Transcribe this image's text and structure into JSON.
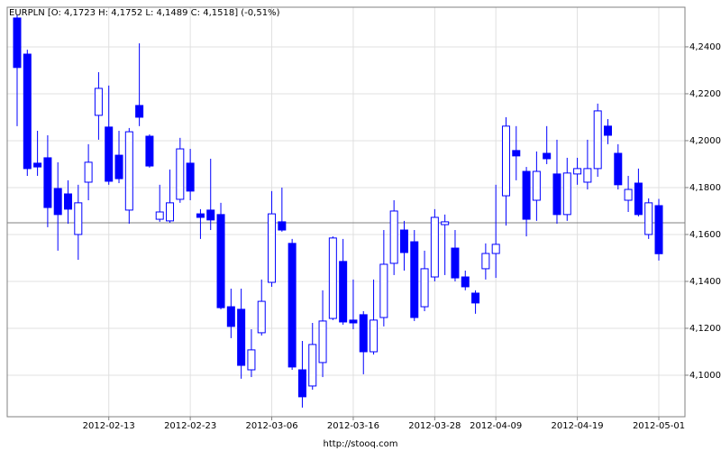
{
  "chart_data": {
    "type": "candlestick",
    "title": "EURPLN [O: 4,1723  H: 4,1752  L: 4,1489  C: 4,1518] (-0,51%)",
    "source": "http://stooq.com",
    "categories": [
      null,
      null,
      null,
      null,
      null,
      null,
      null,
      null,
      null,
      "2012-02-13",
      null,
      null,
      null,
      null,
      null,
      null,
      null,
      "2012-02-23",
      null,
      null,
      null,
      null,
      null,
      null,
      null,
      "2012-03-06",
      null,
      null,
      null,
      null,
      null,
      null,
      null,
      "2012-03-16",
      null,
      null,
      null,
      null,
      null,
      null,
      null,
      "2012-03-28",
      null,
      null,
      null,
      null,
      null,
      "2012-04-09",
      null,
      null,
      null,
      null,
      null,
      null,
      null,
      "2012-04-19",
      null,
      null,
      null,
      null,
      null,
      null,
      null,
      "2012-05-01"
    ],
    "open": [
      4.2523,
      4.2369,
      4.1904,
      4.1927,
      4.1796,
      4.1773,
      4.16,
      4.1823,
      4.2108,
      4.2058,
      4.1938,
      4.1704,
      4.215,
      4.2019,
      4.1665,
      4.1658,
      4.175,
      4.1904,
      4.1688,
      4.1704,
      4.1685,
      4.1292,
      4.1281,
      4.1023,
      4.1181,
      4.1396,
      4.1654,
      4.1562,
      4.1023,
      4.0954,
      4.1054,
      4.1242,
      4.1485,
      4.1235,
      4.1258,
      4.11,
      4.1246,
      4.1477,
      4.1619,
      4.1569,
      4.1292,
      4.1419,
      4.1642,
      4.1542,
      4.1419,
      4.135,
      4.1454,
      4.1519,
      4.1765,
      4.1958,
      4.1869,
      4.1746,
      4.1946,
      4.1858,
      4.1685,
      4.1858,
      4.1823,
      4.1881,
      4.2062,
      4.1946,
      4.1746,
      4.1819,
      4.16,
      4.1723
    ],
    "high": [
      4.2535,
      4.2388,
      4.2042,
      4.2023,
      4.1908,
      4.1831,
      4.1812,
      4.1985,
      4.2292,
      4.2235,
      4.2042,
      4.2054,
      4.2415,
      4.2027,
      4.1812,
      4.1877,
      4.2012,
      4.1965,
      4.1708,
      4.1923,
      4.1735,
      4.1369,
      4.1369,
      4.1196,
      4.1408,
      4.1785,
      4.18,
      4.1581,
      4.1146,
      4.1223,
      4.1362,
      4.1592,
      4.1581,
      4.1408,
      4.1273,
      4.1408,
      4.1619,
      4.1746,
      4.1658,
      4.1619,
      4.1531,
      4.1708,
      4.1685,
      4.1619,
      4.1446,
      4.1362,
      4.1562,
      4.1812,
      4.21,
      4.2062,
      4.1888,
      4.1954,
      4.2062,
      4.2004,
      4.1927,
      4.1927,
      4.2004,
      4.2158,
      4.2092,
      4.1985,
      4.185,
      4.1881,
      4.1754,
      4.1752
    ],
    "low": [
      4.2062,
      4.185,
      4.185,
      4.1631,
      4.1531,
      4.1646,
      4.1492,
      4.1746,
      4.2004,
      4.1812,
      4.1819,
      4.1646,
      4.2062,
      4.1885,
      4.1654,
      4.165,
      4.1735,
      4.1746,
      4.1581,
      4.1619,
      4.1281,
      4.1158,
      4.0985,
      4.0992,
      4.1169,
      4.1377,
      4.1612,
      4.1023,
      4.0862,
      4.0938,
      4.0992,
      4.1235,
      4.1215,
      4.1196,
      4.1004,
      4.1088,
      4.1208,
      4.1427,
      4.1446,
      4.1231,
      4.1273,
      4.14,
      4.1427,
      4.14,
      4.1362,
      4.1262,
      4.1408,
      4.1415,
      4.1638,
      4.1831,
      4.1592,
      4.1658,
      4.19,
      4.1646,
      4.1658,
      4.1812,
      4.1792,
      4.1846,
      4.1985,
      4.1792,
      4.1696,
      4.1677,
      4.1581,
      4.1489
    ],
    "close": [
      4.2312,
      4.1881,
      4.1888,
      4.1715,
      4.1685,
      4.1708,
      4.1735,
      4.1908,
      4.2223,
      4.1827,
      4.1838,
      4.2038,
      4.21,
      4.1892,
      4.1696,
      4.1735,
      4.1965,
      4.1785,
      4.1673,
      4.1662,
      4.1288,
      4.1208,
      4.1042,
      4.1108,
      4.1315,
      4.1688,
      4.1619,
      4.1035,
      4.0908,
      4.1131,
      4.1231,
      4.1585,
      4.1227,
      4.1223,
      4.11,
      4.1235,
      4.1473,
      4.17,
      4.1523,
      4.1246,
      4.1454,
      4.1673,
      4.1654,
      4.1415,
      4.1377,
      4.1308,
      4.1519,
      4.1558,
      4.2062,
      4.1935,
      4.1665,
      4.1869,
      4.1923,
      4.1685,
      4.1862,
      4.1881,
      4.1881,
      4.2127,
      4.2023,
      4.1812,
      4.1792,
      4.1685,
      4.1735,
      4.1518
    ],
    "color": "#0000ff",
    "reference_line": 4.165,
    "ylim": [
      4.0823,
      4.2569
    ],
    "yticks": [
      {
        "value": 4.1,
        "label": "4,1000"
      },
      {
        "value": 4.12,
        "label": "4,1200"
      },
      {
        "value": 4.14,
        "label": "4,1400"
      },
      {
        "value": 4.16,
        "label": "4,1600"
      },
      {
        "value": 4.18,
        "label": "4,1800"
      },
      {
        "value": 4.2,
        "label": "4,2000"
      },
      {
        "value": 4.22,
        "label": "4,2200"
      },
      {
        "value": 4.24,
        "label": "4,2400"
      }
    ],
    "grid": true
  }
}
